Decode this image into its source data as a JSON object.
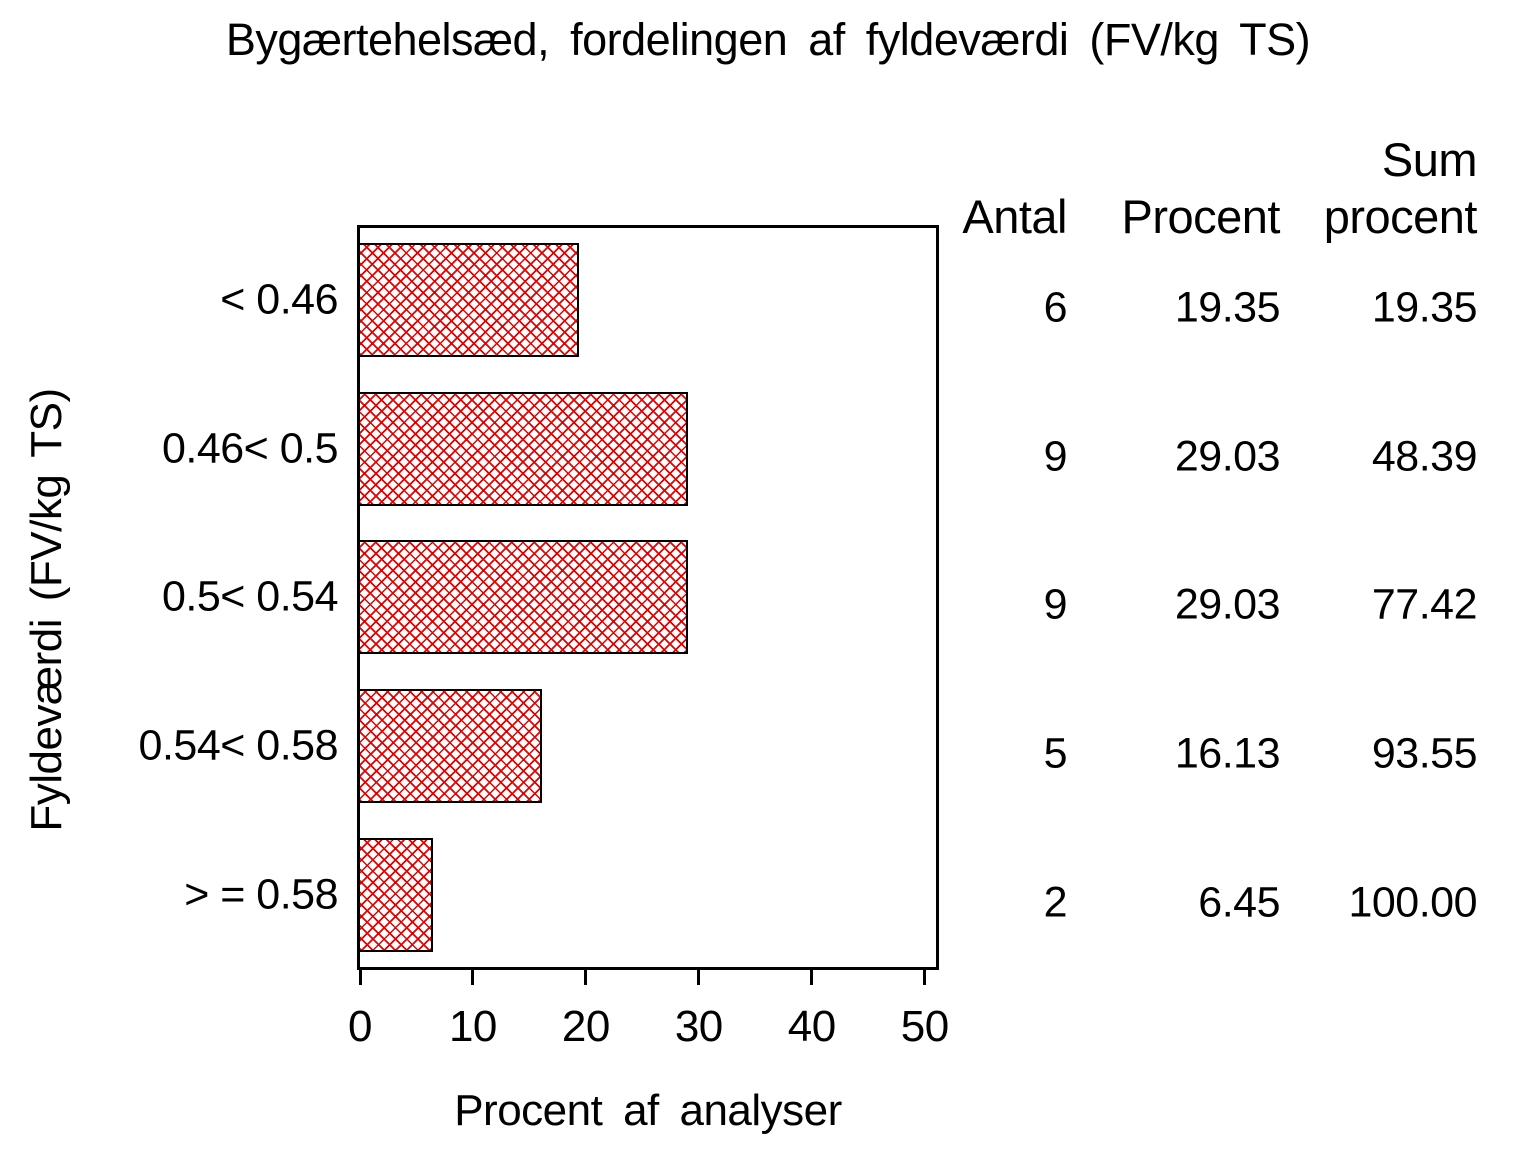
{
  "chart_data": {
    "type": "bar",
    "orientation": "horizontal",
    "title": "Bygærtehelsæd, fordelingen af fyldeværdi (FV/kg TS)",
    "xlabel": "Procent af analyser",
    "ylabel": "Fyldeværdi (FV/kg TS)",
    "categories": [
      "< 0.46",
      "0.46< 0.5",
      "0.5< 0.54",
      "0.54< 0.58",
      "> = 0.58"
    ],
    "series": [
      {
        "name": "Antal",
        "values": [
          6,
          9,
          9,
          5,
          2
        ]
      },
      {
        "name": "Procent",
        "values": [
          19.35,
          29.03,
          29.03,
          16.13,
          6.45
        ]
      },
      {
        "name": "Sum procent",
        "values": [
          19.35,
          48.39,
          77.42,
          93.55,
          100.0
        ]
      }
    ],
    "bar_series": "Procent",
    "xlim": [
      0,
      51
    ],
    "xticks": [
      0,
      10,
      20,
      30,
      40,
      50
    ],
    "grid": false,
    "legend": "none",
    "bar_fill": "red-crosshatch",
    "bar_color": "#e60000",
    "frame_color": "#000000",
    "text_color": "#000000",
    "background_color": "#ffffff"
  },
  "table": {
    "headers": [
      "Antal",
      "Procent",
      "Sum procent"
    ],
    "rows": [
      [
        "6",
        "19.35",
        "19.35"
      ],
      [
        "9",
        "29.03",
        "48.39"
      ],
      [
        "9",
        "29.03",
        "77.42"
      ],
      [
        "5",
        "16.13",
        "93.55"
      ],
      [
        "2",
        "6.45",
        "100.00"
      ]
    ]
  }
}
